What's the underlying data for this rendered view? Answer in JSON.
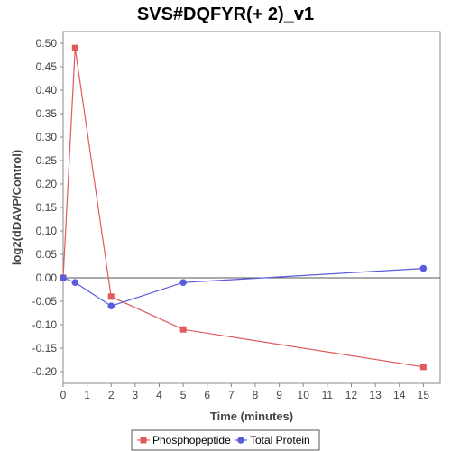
{
  "chart_data": {
    "type": "line",
    "title": "SVS#DQFYR(+ 2)_v1",
    "xlabel": "Time (minutes)",
    "ylabel": "log2(dDAVP/Control)",
    "xlim": [
      0,
      15.7
    ],
    "ylim": [
      -0.225,
      0.525
    ],
    "x_ticks": [
      "0",
      "1",
      "2",
      "3",
      "4",
      "5",
      "6",
      "7",
      "8",
      "9",
      "10",
      "11",
      "12",
      "13",
      "14",
      "15"
    ],
    "y_ticks": [
      "0.50",
      "0.45",
      "0.40",
      "0.35",
      "0.30",
      "0.25",
      "0.20",
      "0.15",
      "0.10",
      "0.05",
      "0.00",
      "-0.05",
      "-0.10",
      "-0.15",
      "-0.20"
    ],
    "grid": false,
    "legend_position": "bottom",
    "series": [
      {
        "name": "Phosphopeptide",
        "color": "#e05a5a",
        "marker": "square",
        "x": [
          0,
          0.5,
          2,
          5,
          15
        ],
        "y": [
          0.0,
          0.49,
          -0.04,
          -0.11,
          -0.19
        ]
      },
      {
        "name": "Total Protein",
        "color": "#5a5ae0",
        "marker": "circle",
        "x": [
          0,
          0.5,
          2,
          5,
          15
        ],
        "y": [
          0.0,
          -0.01,
          -0.06,
          -0.01,
          0.02
        ]
      }
    ]
  }
}
